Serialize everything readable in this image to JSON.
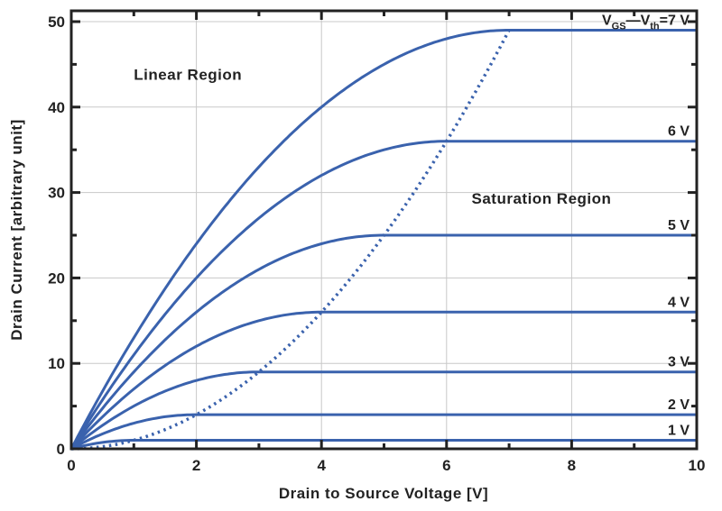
{
  "chart_data": {
    "type": "line",
    "xlabel": "Drain to Source Voltage [V]",
    "ylabel": "Drain Current [arbitrary unit]",
    "xlim": [
      0,
      10
    ],
    "ylim": [
      0,
      50
    ],
    "xticks": [
      0,
      2,
      4,
      6,
      8,
      10
    ],
    "yticks": [
      0,
      10,
      20,
      30,
      40,
      50
    ],
    "grid": true,
    "line_color": "#3a62ad",
    "series": [
      {
        "label": "1 V",
        "overdrive": 1,
        "saturation_current": 1
      },
      {
        "label": "2 V",
        "overdrive": 2,
        "saturation_current": 4
      },
      {
        "label": "3 V",
        "overdrive": 3,
        "saturation_current": 9
      },
      {
        "label": "4 V",
        "overdrive": 4,
        "saturation_current": 16
      },
      {
        "label": "5 V",
        "overdrive": 5,
        "saturation_current": 25
      },
      {
        "label": "6 V",
        "overdrive": 6,
        "saturation_current": 36
      },
      {
        "label_main": "V",
        "label_sub1": "GS",
        "label_mid": "—V",
        "label_sub2": "th",
        "label_end": "=7 V",
        "overdrive": 7,
        "saturation_current": 49
      }
    ],
    "boundary": {
      "style": "dotted",
      "relation": "I = V^2",
      "x_range": [
        0,
        7
      ]
    },
    "annotations": [
      {
        "text": "Linear Region",
        "x": 1.0,
        "y": 43.2
      },
      {
        "text": "Saturation Region",
        "x": 6.4,
        "y": 28.7
      }
    ]
  }
}
